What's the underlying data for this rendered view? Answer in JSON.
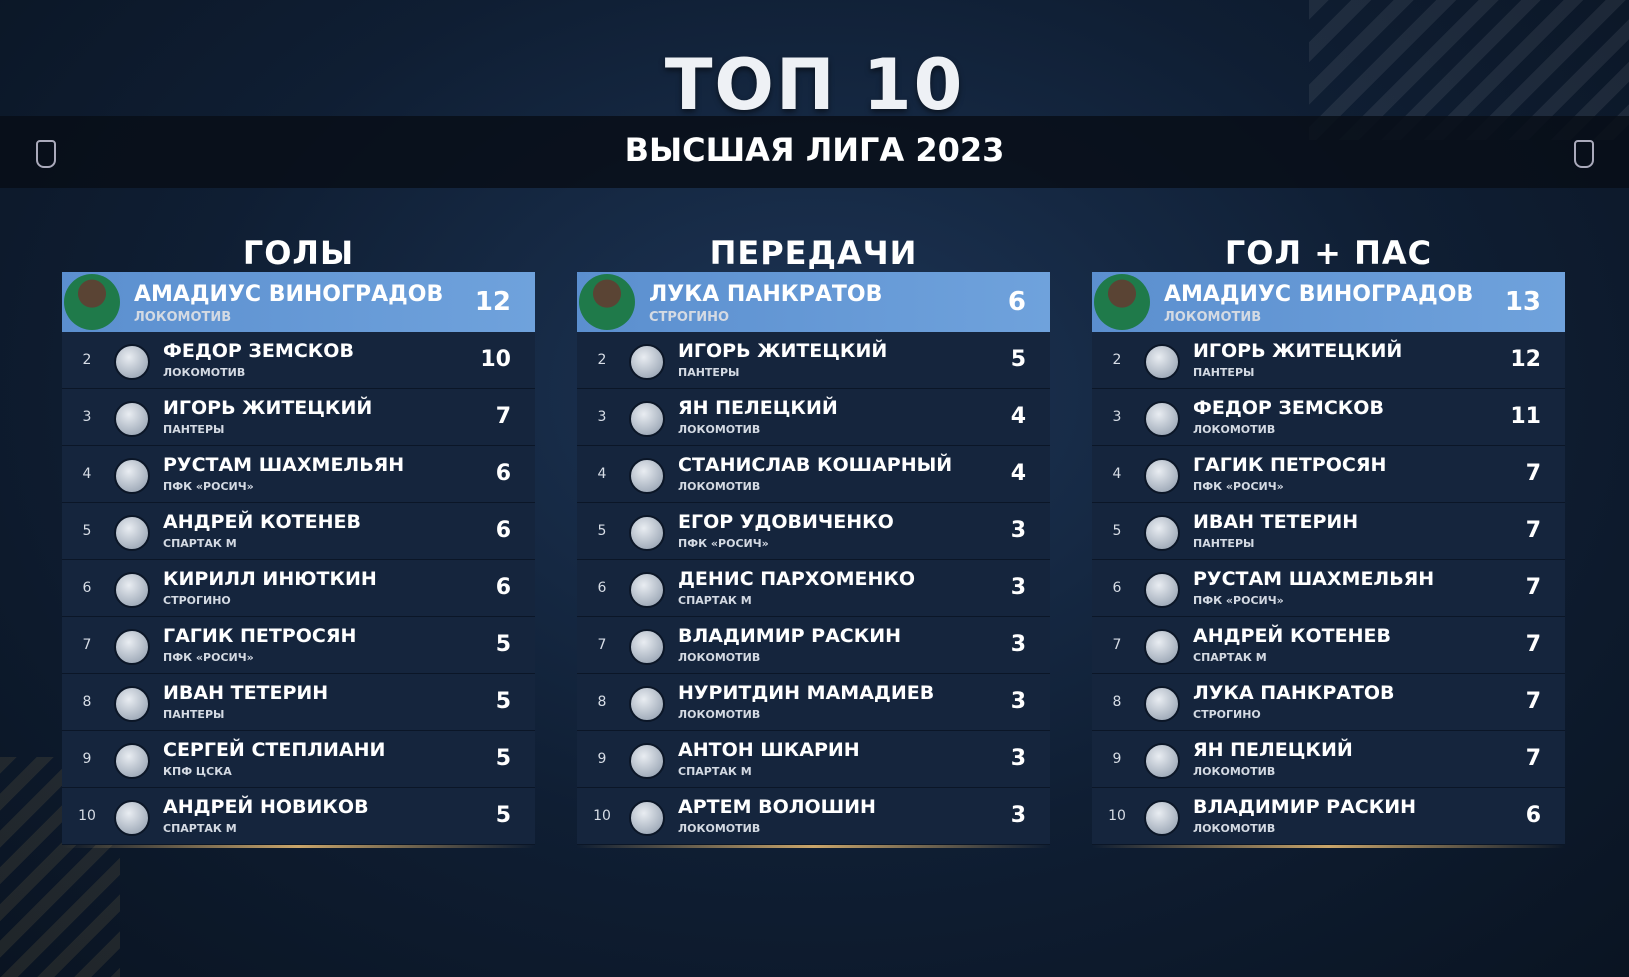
{
  "header": {
    "title": "ТОП 10",
    "subtitle": "ВЫСШАЯ ЛИГА 2023"
  },
  "tables": [
    {
      "title": "ГОЛЫ",
      "rows": [
        {
          "name": "АМАДИУС ВИНОГРАДОВ",
          "team": "ЛОКОМОТИВ",
          "value": 12
        },
        {
          "rank": 2,
          "name": "ФЕДОР ЗЕМСКОВ",
          "team": "ЛОКОМОТИВ",
          "value": 10
        },
        {
          "rank": 3,
          "name": "ИГОРЬ ЖИТЕЦКИЙ",
          "team": "ПАНТЕРЫ",
          "value": 7
        },
        {
          "rank": 4,
          "name": "РУСТАМ ШАХМЕЛЬЯН",
          "team": "ПФК «РОСИЧ»",
          "value": 6
        },
        {
          "rank": 5,
          "name": "АНДРЕЙ КОТЕНЕВ",
          "team": "СПАРТАК М",
          "value": 6
        },
        {
          "rank": 6,
          "name": "КИРИЛЛ ИНЮТКИН",
          "team": "СТРОГИНО",
          "value": 6
        },
        {
          "rank": 7,
          "name": "ГАГИК ПЕТРОСЯН",
          "team": "ПФК «РОСИЧ»",
          "value": 5
        },
        {
          "rank": 8,
          "name": "ИВАН ТЕТЕРИН",
          "team": "ПАНТЕРЫ",
          "value": 5
        },
        {
          "rank": 9,
          "name": "СЕРГЕЙ СТЕПЛИАНИ",
          "team": "КПФ ЦСКА",
          "value": 5
        },
        {
          "rank": 10,
          "name": "АНДРЕЙ НОВИКОВ",
          "team": "СПАРТАК М",
          "value": 5
        }
      ]
    },
    {
      "title": "ПЕРЕДАЧИ",
      "rows": [
        {
          "name": "ЛУКА ПАНКРАТОВ",
          "team": "СТРОГИНО",
          "value": 6
        },
        {
          "rank": 2,
          "name": "ИГОРЬ ЖИТЕЦКИЙ",
          "team": "ПАНТЕРЫ",
          "value": 5
        },
        {
          "rank": 3,
          "name": "ЯН ПЕЛЕЦКИЙ",
          "team": "ЛОКОМОТИВ",
          "value": 4
        },
        {
          "rank": 4,
          "name": "СТАНИСЛАВ КОШАРНЫЙ",
          "team": "ЛОКОМОТИВ",
          "value": 4
        },
        {
          "rank": 5,
          "name": "ЕГОР УДОВИЧЕНКО",
          "team": "ПФК «РОСИЧ»",
          "value": 3
        },
        {
          "rank": 6,
          "name": "ДЕНИС ПАРХОМЕНКО",
          "team": "СПАРТАК М",
          "value": 3
        },
        {
          "rank": 7,
          "name": "ВЛАДИМИР РАСКИН",
          "team": "ЛОКОМОТИВ",
          "value": 3
        },
        {
          "rank": 8,
          "name": "НУРИТДИН МАМАДИЕВ",
          "team": "ЛОКОМОТИВ",
          "value": 3
        },
        {
          "rank": 9,
          "name": "АНТОН ШКАРИН",
          "team": "СПАРТАК М",
          "value": 3
        },
        {
          "rank": 10,
          "name": "АРТЕМ ВОЛОШИН",
          "team": "ЛОКОМОТИВ",
          "value": 3
        }
      ]
    },
    {
      "title": "ГОЛ + ПАС",
      "rows": [
        {
          "name": "АМАДИУС ВИНОГРАДОВ",
          "team": "ЛОКОМОТИВ",
          "value": 13
        },
        {
          "rank": 2,
          "name": "ИГОРЬ ЖИТЕЦКИЙ",
          "team": "ПАНТЕРЫ",
          "value": 12
        },
        {
          "rank": 3,
          "name": "ФЕДОР ЗЕМСКОВ",
          "team": "ЛОКОМОТИВ",
          "value": 11
        },
        {
          "rank": 4,
          "name": "ГАГИК ПЕТРОСЯН",
          "team": "ПФК «РОСИЧ»",
          "value": 7
        },
        {
          "rank": 5,
          "name": "ИВАН ТЕТЕРИН",
          "team": "ПАНТЕРЫ",
          "value": 7
        },
        {
          "rank": 6,
          "name": "РУСТАМ ШАХМЕЛЬЯН",
          "team": "ПФК «РОСИЧ»",
          "value": 7
        },
        {
          "rank": 7,
          "name": "АНДРЕЙ КОТЕНЕВ",
          "team": "СПАРТАК М",
          "value": 7
        },
        {
          "rank": 8,
          "name": "ЛУКА ПАНКРАТОВ",
          "team": "СТРОГИНО",
          "value": 7
        },
        {
          "rank": 9,
          "name": "ЯН ПЕЛЕЦКИЙ",
          "team": "ЛОКОМОТИВ",
          "value": 7
        },
        {
          "rank": 10,
          "name": "ВЛАДИМИР РАСКИН",
          "team": "ЛОКОМОТИВ",
          "value": 6
        }
      ]
    }
  ]
}
